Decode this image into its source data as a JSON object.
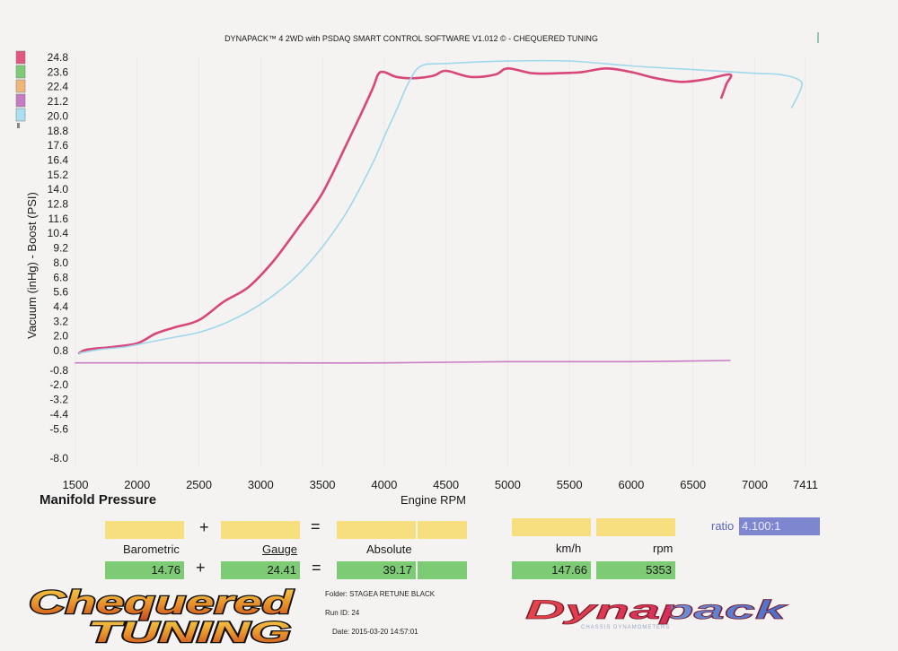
{
  "header": {
    "title": "DYNAPACK™ 4 2WD with PSDAQ SMART CONTROL SOFTWARE V1.012 © - CHEQUERED TUNING"
  },
  "chart_data": {
    "type": "line",
    "title": "Manifold Pressure",
    "xlabel": "Engine RPM",
    "ylabel": "Vacuum (inHg) - Boost (PSI)",
    "xlim": [
      1500,
      7411
    ],
    "ylim": [
      -8.0,
      24.8
    ],
    "x_ticks": [
      "1500",
      "2000",
      "2500",
      "3000",
      "3500",
      "4000",
      "4500",
      "5000",
      "5500",
      "6000",
      "6500",
      "7000",
      "7411"
    ],
    "y_ticks": [
      "24.8",
      "23.6",
      "22.4",
      "21.2",
      "20.0",
      "18.8",
      "17.6",
      "16.4",
      "15.2",
      "14.0",
      "12.8",
      "11.6",
      "10.4",
      "9.2",
      "8.0",
      "6.8",
      "5.6",
      "4.4",
      "3.2",
      "2.0",
      "0.8",
      "-0.8",
      "-2.0",
      "-3.2",
      "-4.4",
      "-5.6",
      "-8.0"
    ],
    "legend_colors": [
      "#e2587f",
      "#7ecb76",
      "#f2b57c",
      "#c77bc4",
      "#a9dff0"
    ],
    "series": [
      {
        "color": "#d9467a",
        "x": [
          1530,
          1600,
          1800,
          2000,
          2150,
          2300,
          2500,
          2700,
          2900,
          3100,
          3300,
          3500,
          3700,
          3900,
          3950,
          4000,
          4100,
          4250,
          4400,
          4500,
          4700,
          4900,
          5000,
          5200,
          5400,
          5600,
          5800,
          6000,
          6200,
          6400,
          6600,
          6800,
          6770,
          6730
        ],
        "y": [
          0.6,
          0.9,
          1.1,
          1.4,
          2.2,
          2.7,
          3.3,
          4.8,
          6.0,
          8.1,
          10.8,
          13.7,
          17.8,
          22.1,
          23.4,
          23.6,
          23.2,
          23.1,
          23.3,
          23.7,
          23.2,
          23.4,
          23.9,
          23.5,
          23.5,
          23.6,
          23.9,
          23.6,
          23.1,
          22.8,
          23.0,
          23.4,
          22.6,
          21.5
        ]
      },
      {
        "color": "#9fd8ec",
        "x": [
          1530,
          1700,
          1900,
          2100,
          2300,
          2500,
          2700,
          2900,
          3100,
          3300,
          3500,
          3700,
          3900,
          4000,
          4100,
          4200,
          4300,
          4500,
          5000,
          5500,
          6000,
          6500,
          7000,
          7200,
          7350,
          7380,
          7300
        ],
        "y": [
          0.6,
          0.9,
          1.1,
          1.5,
          1.9,
          2.3,
          3.0,
          4.0,
          5.3,
          7.0,
          9.3,
          12.2,
          16.0,
          18.3,
          20.5,
          22.8,
          24.1,
          24.3,
          24.5,
          24.5,
          24.1,
          23.8,
          23.5,
          23.4,
          23.0,
          22.4,
          20.7
        ]
      },
      {
        "color": "#c77bc4",
        "x": [
          1500,
          3000,
          4000,
          5000,
          6000,
          6800
        ],
        "y": [
          -0.2,
          -0.2,
          -0.2,
          -0.1,
          -0.1,
          0.0
        ]
      }
    ]
  },
  "readouts": {
    "plus1": "+",
    "plus2": "+",
    "equals1": "=",
    "equals2": "=",
    "barometric_label": "Barometric",
    "gauge_label": "Gauge",
    "absolute_label": "Absolute",
    "kmh_label": "km/h",
    "rpm_label": "rpm",
    "barometric_value": "14.76",
    "gauge_value": "24.41",
    "absolute_value": "39.17",
    "kmh_value": "147.66",
    "rpm_value": "5353",
    "ratio_label": "ratio",
    "ratio_value": "4.100:1"
  },
  "meta": {
    "folder": "Folder:  STAGEA RETUNE BLACK",
    "run_id": "Run ID:  24",
    "date": "Date:  2015-03-20 14:57:01"
  },
  "logos": {
    "chequered_line1": "Chequered",
    "chequered_line2": "TUNING",
    "dynapack": "Dynapack",
    "dynapack_sub": "CHASSIS DYNAMOMETERS"
  }
}
